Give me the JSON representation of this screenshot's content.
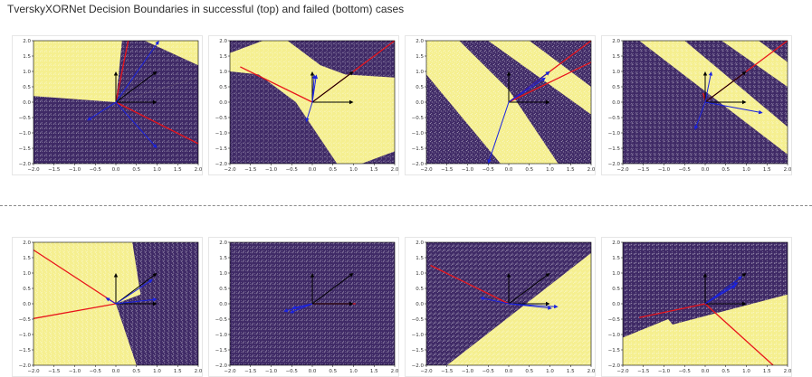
{
  "page": {
    "title": "TverskyXORNet Decision Boundaries in successful (top) and failed (bottom) cases"
  },
  "colors": {
    "class_a": "#f5ef8f",
    "class_b": "#3f2a66",
    "black_arrow": "#000000",
    "red_line": "#e8141b",
    "blue_arrow": "#1a22e0"
  },
  "chart_data": [
    {
      "type": "scatter",
      "row": "top",
      "index": 1,
      "xlim": [
        -2,
        2
      ],
      "ylim": [
        -2,
        2
      ],
      "xticks": [
        "−2.0",
        "−1.5",
        "−1.0",
        "−0.5",
        "0.0",
        "0.5",
        "1.0",
        "1.5",
        "2.0"
      ],
      "yticks": [
        "2.0",
        "1.5",
        "1.0",
        "0.5",
        "0.0",
        "−0.5",
        "−1.0",
        "−1.5",
        "−2.0"
      ],
      "background": "class_b",
      "regions": [
        {
          "class": "class_a",
          "polygon": [
            [
              -2,
              2
            ],
            [
              -2,
              0.2
            ],
            [
              0,
              0
            ],
            [
              2,
              0.8
            ],
            [
              2,
              2
            ]
          ]
        },
        {
          "class": "class_b",
          "polygon": [
            [
              0,
              0
            ],
            [
              2,
              0.8
            ],
            [
              2,
              1.2
            ],
            [
              0.7,
              2
            ],
            [
              0.15,
              2
            ]
          ]
        }
      ],
      "black_arrows": [
        [
          0,
          1
        ],
        [
          1,
          0
        ],
        [
          1,
          1
        ]
      ],
      "red_lines": [
        [
          [
            0,
            0
          ],
          [
            0.3,
            2
          ]
        ],
        [
          [
            0,
            0
          ],
          [
            2,
            -1.35
          ]
        ]
      ],
      "blue_arrows": [
        [
          1,
          -1.5
        ],
        [
          1.05,
          2
        ],
        [
          -0.7,
          -0.6
        ]
      ]
    },
    {
      "type": "scatter",
      "row": "top",
      "index": 2,
      "xlim": [
        -2,
        2
      ],
      "ylim": [
        -2,
        2
      ],
      "xticks": [
        "−2.0",
        "−1.5",
        "−1.0",
        "−0.5",
        "0.0",
        "0.5",
        "1.0",
        "1.5",
        "2.0"
      ],
      "yticks": [
        "2.0",
        "1.5",
        "1.0",
        "0.5",
        "0.0",
        "−0.5",
        "−1.0",
        "−1.5",
        "−2.0"
      ],
      "background": "class_b",
      "regions": [
        {
          "class": "class_a",
          "polygon": [
            [
              -2,
              1.6
            ],
            [
              -1.2,
              2
            ],
            [
              -0.6,
              2
            ],
            [
              0.2,
              1.2
            ],
            [
              0.8,
              0.9
            ],
            [
              2,
              0.8
            ],
            [
              2,
              -1.6
            ],
            [
              1.2,
              -2
            ],
            [
              0.6,
              -2
            ],
            [
              -0.4,
              0
            ],
            [
              -1.3,
              0.9
            ],
            [
              -2,
              1.0
            ]
          ]
        }
      ],
      "black_arrows": [
        [
          0,
          1
        ],
        [
          1,
          0
        ],
        [
          1,
          1
        ]
      ],
      "red_lines": [
        [
          [
            0,
            0
          ],
          [
            2,
            2
          ]
        ],
        [
          [
            0,
            0
          ],
          [
            -1.75,
            1.15
          ]
        ]
      ],
      "blue_arrows": [
        [
          0.1,
          0.9
        ],
        [
          -0.15,
          -0.65
        ],
        [
          0.05,
          0.9
        ]
      ]
    },
    {
      "type": "scatter",
      "row": "top",
      "index": 3,
      "xlim": [
        -2,
        2
      ],
      "ylim": [
        -2,
        2
      ],
      "xticks": [
        "−2.0",
        "−1.5",
        "−1.0",
        "−0.5",
        "0.0",
        "0.5",
        "1.0",
        "1.5",
        "2.0"
      ],
      "yticks": [
        "2.0",
        "1.5",
        "1.0",
        "0.5",
        "0.0",
        "−0.5",
        "−1.0",
        "−1.5",
        "−2.0"
      ],
      "background": "class_b",
      "regions": [
        {
          "class": "class_a",
          "polygon": [
            [
              -2,
              2
            ],
            [
              -1.2,
              2
            ],
            [
              0,
              0.4
            ],
            [
              1.2,
              -2
            ],
            [
              -0.2,
              -2
            ],
            [
              -2,
              0.9
            ]
          ]
        },
        {
          "class": "class_a",
          "polygon": [
            [
              -0.5,
              2
            ],
            [
              0.5,
              2
            ],
            [
              2,
              0.5
            ],
            [
              2,
              -0.4
            ]
          ]
        }
      ],
      "black_arrows": [
        [
          0,
          1
        ],
        [
          1,
          0
        ],
        [
          1,
          1
        ]
      ],
      "red_lines": [
        [
          [
            0,
            0
          ],
          [
            2,
            2
          ]
        ],
        [
          [
            0,
            0
          ],
          [
            2,
            1.3
          ]
        ]
      ],
      "blue_arrows": [
        [
          1,
          1
        ],
        [
          0.9,
          0.8
        ],
        [
          -0.5,
          -2
        ]
      ]
    },
    {
      "type": "scatter",
      "row": "top",
      "index": 4,
      "xlim": [
        -2,
        2
      ],
      "ylim": [
        -2,
        2
      ],
      "xticks": [
        "−2.0",
        "−1.5",
        "−1.0",
        "−0.5",
        "0.0",
        "0.5",
        "1.0",
        "1.5",
        "2.0"
      ],
      "yticks": [
        "2.0",
        "1.5",
        "1.0",
        "0.5",
        "0.0",
        "−0.5",
        "−1.0",
        "−1.5",
        "−2.0"
      ],
      "background": "class_b",
      "regions": [
        {
          "class": "class_a",
          "polygon": [
            [
              -1.6,
              2
            ],
            [
              -0.5,
              2
            ],
            [
              2,
              -0.8
            ],
            [
              2,
              -1.7
            ]
          ]
        },
        {
          "class": "class_a",
          "polygon": [
            [
              0.4,
              2
            ],
            [
              1.3,
              2
            ],
            [
              2,
              1.3
            ],
            [
              2,
              0.5
            ]
          ]
        }
      ],
      "black_arrows": [
        [
          0,
          1
        ],
        [
          1,
          0
        ],
        [
          1,
          1
        ]
      ],
      "red_lines": [
        [
          [
            0,
            0
          ],
          [
            2,
            2
          ]
        ]
      ],
      "blue_arrows": [
        [
          1.4,
          -0.35
        ],
        [
          -0.25,
          -0.9
        ],
        [
          0.15,
          1.0
        ]
      ],
      "red_small": [
        [
          [
            -0.05,
            0.3
          ],
          [
            0,
            0.05
          ]
        ]
      ]
    },
    {
      "type": "scatter",
      "row": "bottom",
      "index": 5,
      "xlim": [
        -2,
        2
      ],
      "ylim": [
        -2,
        2
      ],
      "xticks": [
        "−2.0",
        "−1.5",
        "−1.0",
        "−0.5",
        "0.0",
        "0.5",
        "1.0",
        "1.5",
        "2.0"
      ],
      "yticks": [
        "2.0",
        "1.5",
        "1.0",
        "0.5",
        "0.0",
        "−0.5",
        "−1.0",
        "−1.5",
        "−2.0"
      ],
      "background": "class_a",
      "regions": [
        {
          "class": "class_b",
          "polygon": [
            [
              0.4,
              2
            ],
            [
              2,
              2
            ],
            [
              2,
              -2
            ],
            [
              0.5,
              -2
            ],
            [
              0,
              0
            ],
            [
              0.6,
              0.3
            ]
          ]
        }
      ],
      "black_arrows": [
        [
          0,
          1
        ],
        [
          1,
          0
        ],
        [
          1,
          1
        ]
      ],
      "red_lines": [
        [
          [
            0,
            0
          ],
          [
            -2,
            1.75
          ]
        ],
        [
          [
            0,
            0
          ],
          [
            -2,
            -0.48
          ]
        ]
      ],
      "blue_arrows": [
        [
          1,
          0.15
        ],
        [
          -0.25,
          0.2
        ],
        [
          0.9,
          0.8
        ]
      ]
    },
    {
      "type": "scatter",
      "row": "bottom",
      "index": 6,
      "xlim": [
        -2,
        2
      ],
      "ylim": [
        -2,
        2
      ],
      "xticks": [
        "−2.0",
        "−1.5",
        "−1.0",
        "−0.5",
        "0.0",
        "0.5",
        "1.0",
        "1.5",
        "2.0"
      ],
      "yticks": [
        "2.0",
        "1.5",
        "1.0",
        "0.5",
        "0.0",
        "−0.5",
        "−1.0",
        "−1.5",
        "−2.0"
      ],
      "background": "class_b",
      "regions": [],
      "black_arrows": [
        [
          0,
          1
        ],
        [
          1,
          0
        ],
        [
          1,
          1
        ]
      ],
      "red_lines": [
        [
          [
            0,
            0
          ],
          [
            1.05,
            0
          ]
        ]
      ],
      "blue_arrows": [
        [
          -0.7,
          -0.25
        ],
        [
          -0.55,
          -0.3
        ],
        [
          -0.5,
          -0.15
        ]
      ]
    },
    {
      "type": "scatter",
      "row": "bottom",
      "index": 7,
      "xlim": [
        -2,
        2
      ],
      "ylim": [
        -2,
        2
      ],
      "xticks": [
        "−2.0",
        "−1.5",
        "−1.0",
        "−0.5",
        "0.0",
        "0.5",
        "1.0",
        "1.5",
        "2.0"
      ],
      "yticks": [
        "2.0",
        "1.5",
        "1.0",
        "0.5",
        "0.0",
        "−0.5",
        "−1.0",
        "−1.5",
        "−2.0"
      ],
      "background": "class_b",
      "regions": [
        {
          "class": "class_a",
          "polygon": [
            [
              -1.5,
              -2
            ],
            [
              2,
              -2
            ],
            [
              2,
              1.65
            ]
          ]
        }
      ],
      "black_arrows": [
        [
          0,
          1
        ],
        [
          1,
          0
        ],
        [
          1,
          1
        ]
      ],
      "red_lines": [
        [
          [
            0,
            0
          ],
          [
            -1.9,
            1.25
          ]
        ]
      ],
      "blue_arrows": [
        [
          -0.7,
          0.2
        ],
        [
          1.2,
          -0.1
        ],
        [
          1.05,
          -0.15
        ]
      ]
    },
    {
      "type": "scatter",
      "row": "bottom",
      "index": 8,
      "xlim": [
        -2,
        2
      ],
      "ylim": [
        -2,
        2
      ],
      "xticks": [
        "−2.0",
        "−1.5",
        "−1.0",
        "−0.5",
        "0.0",
        "0.5",
        "1.0",
        "1.5",
        "2.0"
      ],
      "yticks": [
        "2.0",
        "1.5",
        "1.0",
        "0.5",
        "0.0",
        "−0.5",
        "−1.0",
        "−1.5",
        "−2.0"
      ],
      "background": "class_b",
      "regions": [
        {
          "class": "class_a",
          "polygon": [
            [
              -2,
              -1.1
            ],
            [
              2,
              0.3
            ],
            [
              2,
              -2
            ],
            [
              -2,
              -2
            ]
          ]
        },
        {
          "class": "class_a",
          "polygon": [
            [
              -0.9,
              -0.5
            ],
            [
              -2,
              -1.1
            ],
            [
              -2,
              -2
            ],
            [
              0,
              -2
            ]
          ]
        }
      ],
      "black_arrows": [
        [
          0,
          1
        ],
        [
          1,
          0
        ],
        [
          1,
          1
        ]
      ],
      "red_lines": [
        [
          [
            0,
            0
          ],
          [
            -1.6,
            -0.45
          ]
        ],
        [
          [
            0,
            0
          ],
          [
            1.65,
            -2
          ]
        ]
      ],
      "blue_arrows": [
        [
          0.9,
          0.9
        ],
        [
          0.8,
          0.7
        ],
        [
          0.75,
          0.6
        ]
      ]
    }
  ]
}
